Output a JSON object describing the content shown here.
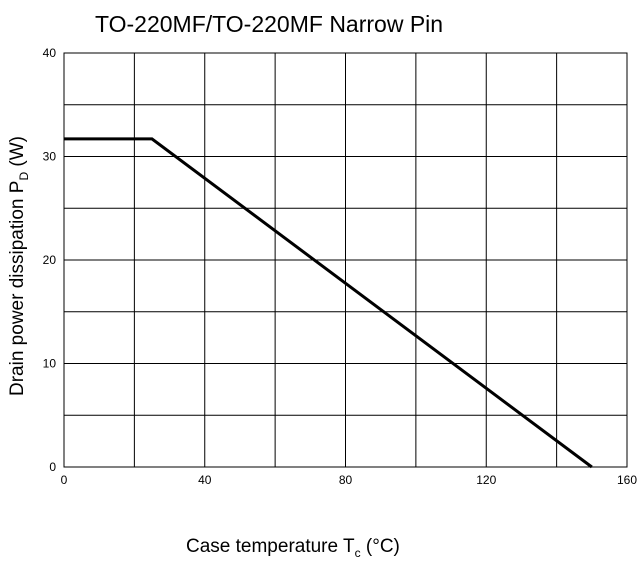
{
  "chart_data": {
    "type": "line",
    "title": "TO-220MF/TO-220MF Narrow Pin",
    "xlabel": {
      "main": "Case temperature T",
      "sub": "c",
      "unit": " (°C)"
    },
    "ylabel": {
      "main": "Drain power dissipation P",
      "sub": "D",
      "unit": " (W)"
    },
    "xlim": [
      0,
      160
    ],
    "ylim": [
      0,
      40
    ],
    "xticks": [
      0,
      40,
      80,
      120,
      160
    ],
    "yticks": [
      0,
      10,
      20,
      30,
      40
    ],
    "x_minor_step": 20,
    "y_minor_step": 5,
    "grid": true,
    "series": [
      {
        "line_color": "#000000",
        "points": [
          [
            0,
            31.7
          ],
          [
            25,
            31.7
          ],
          [
            150,
            0
          ]
        ]
      }
    ]
  }
}
